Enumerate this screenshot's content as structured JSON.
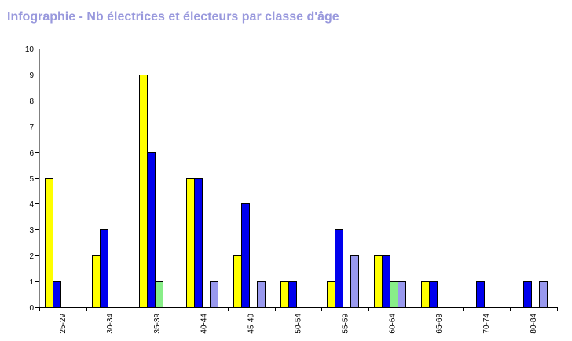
{
  "title": "Infographie - Nb électrices et électeurs par classe d'âge",
  "colors": {
    "title": "#9999dd",
    "series": [
      "#ffff00",
      "#0000ee",
      "#88ee88",
      "#9999ee"
    ],
    "axis": "#000000"
  },
  "chart_data": {
    "type": "bar",
    "title": "Infographie - Nb électrices et électeurs par classe d'âge",
    "xlabel": "",
    "ylabel": "",
    "ylim": [
      0,
      10
    ],
    "yticks": [
      0,
      1,
      2,
      3,
      4,
      5,
      6,
      7,
      8,
      9,
      10
    ],
    "grid": false,
    "legend": "none",
    "categories": [
      "25-29",
      "30-34",
      "35-39",
      "40-44",
      "45-49",
      "50-54",
      "55-59",
      "60-64",
      "65-69",
      "70-74",
      "80-84"
    ],
    "series": [
      {
        "values": [
          5,
          2,
          9,
          5,
          2,
          1,
          1,
          2,
          1,
          0,
          0
        ]
      },
      {
        "values": [
          1,
          3,
          6,
          5,
          4,
          1,
          3,
          2,
          1,
          1,
          1
        ]
      },
      {
        "values": [
          0,
          0,
          1,
          0,
          0,
          0,
          0,
          1,
          0,
          0,
          0
        ]
      },
      {
        "values": [
          0,
          0,
          0,
          1,
          1,
          0,
          2,
          1,
          0,
          0,
          1
        ]
      }
    ]
  }
}
